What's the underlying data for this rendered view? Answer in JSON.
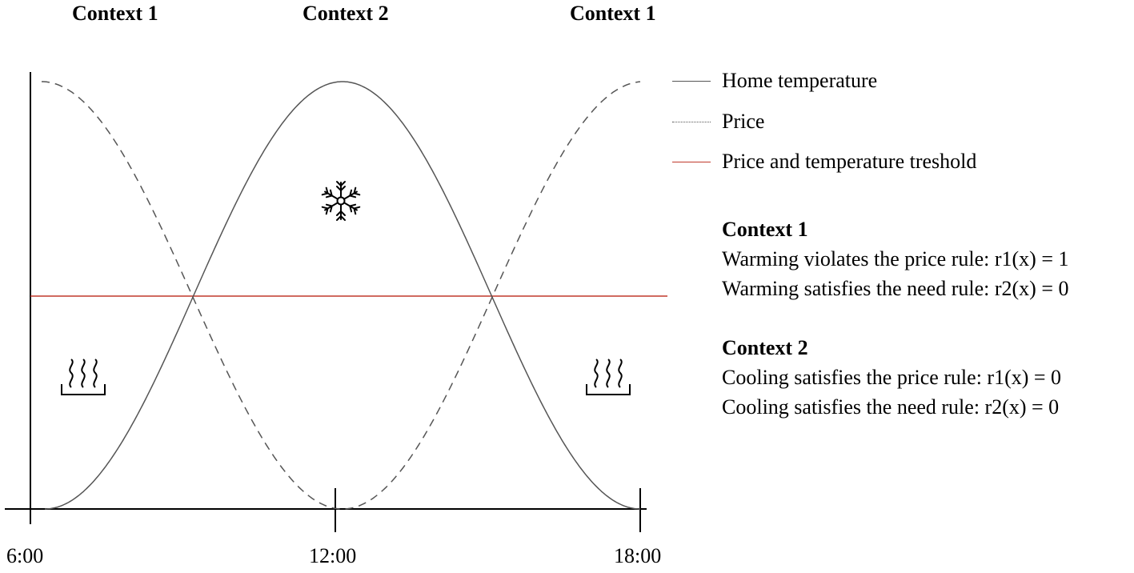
{
  "top_labels": [
    "Context 1",
    "Context 2",
    "Context 1"
  ],
  "x_ticks": [
    "6:00",
    "12:00",
    "18:00"
  ],
  "legend": [
    {
      "label": "Home temperature",
      "style": "solid",
      "color": "#555555"
    },
    {
      "label": "Price",
      "style": "dotted",
      "color": "#555555"
    },
    {
      "label": "Price and temperature treshold",
      "style": "solid",
      "color": "#c0392b"
    }
  ],
  "notes": [
    {
      "title": "Context 1",
      "lines": [
        "Warming violates the price rule: r1(x) = 1",
        "Warming satisfies the need rule: r2(x) = 0"
      ]
    },
    {
      "title": "Context 2",
      "lines": [
        "Cooling satisfies the price rule: r1(x) = 0",
        "Cooling satisfies the need rule: r2(x) = 0"
      ]
    }
  ],
  "icons": {
    "left": "heating-icon",
    "center": "snowflake-icon",
    "right": "heating-icon"
  },
  "colors": {
    "curve": "#555555",
    "threshold": "#c0392b",
    "axis": "#000000"
  }
}
